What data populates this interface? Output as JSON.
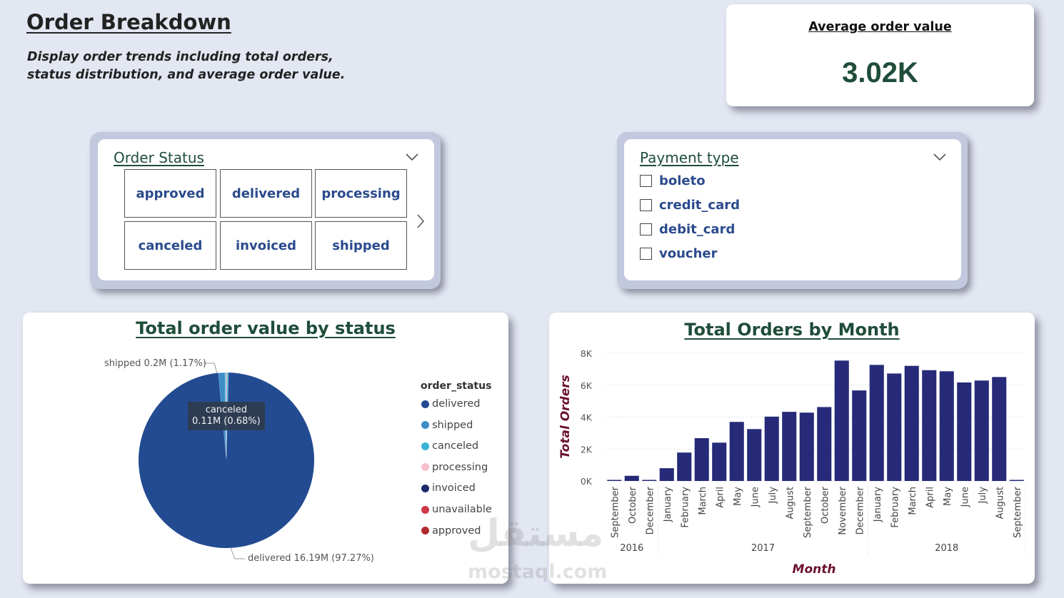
{
  "header": {
    "title": "Order Breakdown",
    "subtitle": "Display order trends including total orders, status distribution, and average order value."
  },
  "kpi": {
    "title": "Average order value",
    "value": "3.02K",
    "value_color": "#1f4d3a"
  },
  "order_status_slicer": {
    "title": "Order Status",
    "options": [
      "approved",
      "delivered",
      "processing",
      "canceled",
      "invoiced",
      "shipped"
    ],
    "icons": [
      "chevron-down-icon",
      "chevron-right-icon"
    ]
  },
  "payment_slicer": {
    "title": "Payment type",
    "options": [
      "boleto",
      "credit_card",
      "debit_card",
      "voucher"
    ],
    "icons": [
      "chevron-down-icon",
      "checkbox-icon"
    ]
  },
  "pie_panel": {
    "legend_title": "order_status",
    "label_shipped": "shipped 0.2M (1.17%)",
    "label_delivered": "delivered 16.19M (97.27%)",
    "tooltip_line1": "canceled",
    "tooltip_line2": "0.11M (0.68%)"
  },
  "bar_panel": {
    "year_labels": [
      "2016",
      "2017",
      "2018"
    ]
  },
  "watermark": {
    "arabic": "مستقل",
    "latin": "mostaql.com"
  },
  "chart_data": [
    {
      "type": "pie",
      "title": "Total order value by status",
      "series_name": "order_status",
      "categories": [
        "delivered",
        "shipped",
        "canceled",
        "processing",
        "invoiced",
        "unavailable",
        "approved"
      ],
      "values": [
        16.19,
        0.2,
        0.11,
        0.0,
        0.0,
        0.0,
        0.0
      ],
      "percentages": [
        97.27,
        1.17,
        0.68,
        null,
        null,
        null,
        null
      ],
      "units": "M",
      "colors": [
        "#234b92",
        "#3c8dc8",
        "#3ab4d6",
        "#f6c1cd",
        "#1e2a6e",
        "#d0394a",
        "#b02a2f"
      ],
      "legend_position": "right"
    },
    {
      "type": "bar",
      "title": "Total Orders by Month",
      "xlabel": "Month",
      "ylabel": "Total Orders",
      "categories": [
        "September",
        "October",
        "December",
        "January",
        "February",
        "March",
        "April",
        "May",
        "June",
        "July",
        "August",
        "September",
        "October",
        "November",
        "December",
        "January",
        "February",
        "March",
        "April",
        "May",
        "June",
        "July",
        "August",
        "September"
      ],
      "years": [
        "2016",
        "2016",
        "2016",
        "2017",
        "2017",
        "2017",
        "2017",
        "2017",
        "2017",
        "2017",
        "2017",
        "2017",
        "2017",
        "2017",
        "2017",
        "2018",
        "2018",
        "2018",
        "2018",
        "2018",
        "2018",
        "2018",
        "2018",
        "2018"
      ],
      "values": [
        4,
        324,
        1,
        800,
        1780,
        2680,
        2400,
        3700,
        3250,
        4030,
        4330,
        4280,
        4630,
        7540,
        5670,
        7270,
        6730,
        7210,
        6940,
        6870,
        6170,
        6290,
        6510,
        16
      ],
      "ylim": [
        0,
        8000
      ],
      "yticks": [
        "0K",
        "2K",
        "4K",
        "6K",
        "8K"
      ],
      "grid": true,
      "bar_color": "#262a78"
    }
  ]
}
